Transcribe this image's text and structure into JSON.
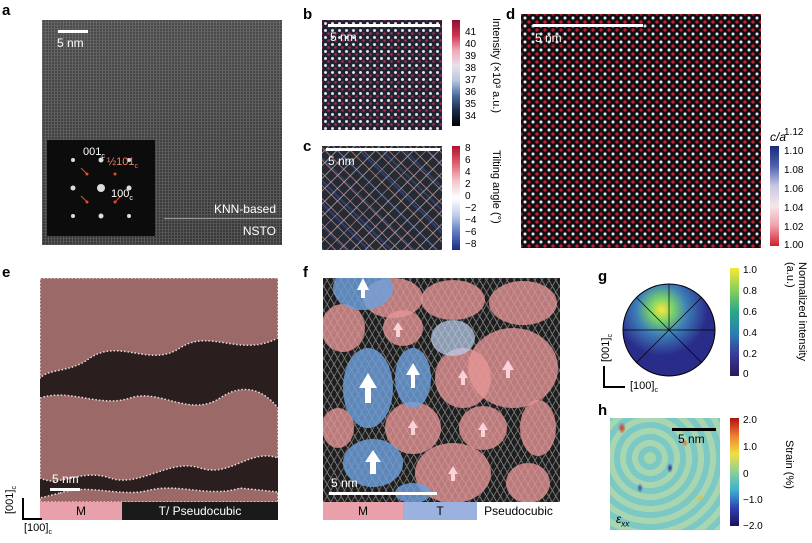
{
  "panels": {
    "a": {
      "label": "a",
      "scale": "5 nm",
      "inset_labels": [
        "001",
        "c",
        "½101",
        "c",
        "100",
        "c"
      ],
      "layer_top": "KNN-based",
      "layer_bottom": "NSTO"
    },
    "b": {
      "label": "b",
      "scale": "5 nm",
      "cbar_title": "Intensity (×10³ a.u.)",
      "ticks": [
        "41",
        "40",
        "39",
        "38",
        "37",
        "36",
        "35",
        "34"
      ]
    },
    "c": {
      "label": "c",
      "scale": "5 nm",
      "cbar_title": "Tilting angle (°)",
      "ticks": [
        "8",
        "6",
        "4",
        "2",
        "0",
        "−2",
        "−4",
        "−6",
        "−8"
      ]
    },
    "d": {
      "label": "d",
      "scale": "5 nm",
      "cbar_title": "c/a",
      "ticks": [
        "1.12",
        "1.10",
        "1.08",
        "1.06",
        "1.04",
        "1.02",
        "1.00"
      ]
    },
    "e": {
      "label": "e",
      "scale": "5 nm",
      "axis_y": "[001]",
      "axis_y_sub": "c",
      "axis_x": "[100]",
      "axis_x_sub": "c",
      "band_m": "M",
      "band_t": "T/ Pseudocubic"
    },
    "f": {
      "label": "f",
      "scale": "5 nm",
      "band_m": "M",
      "band_t": "T",
      "band_p": "Pseudocubic"
    },
    "g": {
      "label": "g",
      "axis_y": "[001]",
      "axis_y_sub": "c",
      "axis_x": "[100]",
      "axis_x_sub": "c",
      "cbar_title": "Normalized intensity (a.u.)",
      "ticks": [
        "1.0",
        "0.8",
        "0.6",
        "0.4",
        "0.2",
        "0"
      ]
    },
    "h": {
      "label": "h",
      "scale": "5 nm",
      "corner": "ε",
      "corner_sub": "xx",
      "cbar_title": "Strain (%)",
      "ticks": [
        "2.0",
        "1.0",
        "0",
        "−1.0",
        "−2.0"
      ]
    }
  },
  "colors": {
    "m_band": "#e8a0aa",
    "t_band": "#9bb2e0",
    "dark": "#1a1a1a"
  }
}
